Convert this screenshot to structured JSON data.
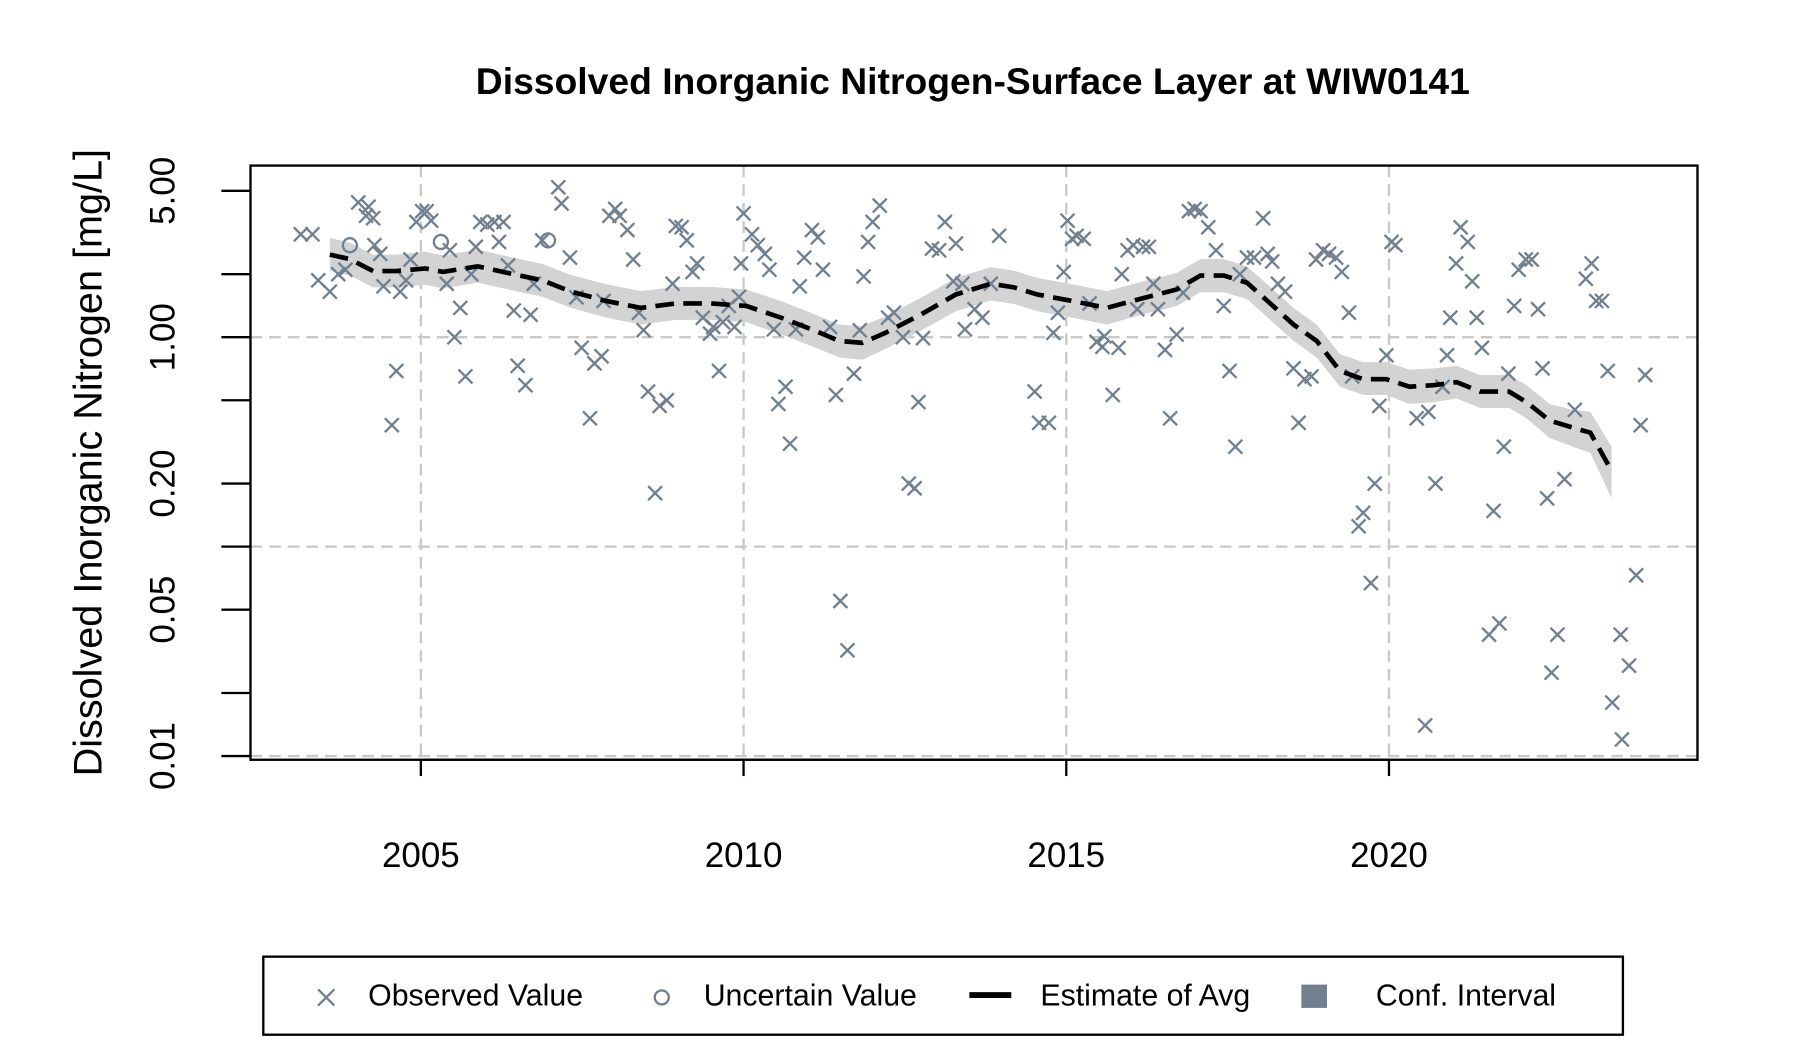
{
  "chart_data": {
    "type": "scatter",
    "title": "Dissolved Inorganic Nitrogen-Surface Layer at WIW0141",
    "y_label": "Dissolved Inorganic Nitrogen [mg/L]",
    "y_log": true,
    "xlim": [
      2002.36,
      2024.78
    ],
    "xticks": [
      2005,
      2010,
      2015,
      2020
    ],
    "ylim": [
      0.0096,
      6.6
    ],
    "yticks": [
      0.01,
      0.05,
      {
        "value": 0.2,
        "label": "0.20"
      },
      {
        "value": 1,
        "label": "1.00"
      },
      {
        "value": 5,
        "label": "5.00"
      }
    ],
    "yticks_minor": [
      0.02,
      0.1,
      0.5,
      2
    ],
    "ygrid": [
      0.01,
      0.1,
      1
    ],
    "grid": true,
    "legend": "bottom",
    "series": [
      {
        "name": "Observed Value",
        "color": "#708090",
        "marker": "x",
        "x": [
          2003.14,
          2003.32,
          2003.41,
          2003.59,
          2003.72,
          2003.83,
          2004.03,
          2004.15,
          2004.19,
          2004.26,
          2004.28,
          2004.37,
          2004.42,
          2004.55,
          2004.62,
          2004.68,
          2004.77,
          2004.84,
          2004.93,
          2005.02,
          2005.09,
          2005.16,
          2005.4,
          2005.45,
          2005.52,
          2005.61,
          2005.69,
          2005.78,
          2005.85,
          2005.92,
          2006.03,
          2006.14,
          2006.21,
          2006.28,
          2006.35,
          2006.44,
          2006.5,
          2006.62,
          2006.7,
          2006.75,
          2006.88,
          2007.13,
          2007.18,
          2007.31,
          2007.41,
          2007.49,
          2007.62,
          2007.69,
          2007.8,
          2007.83,
          2007.92,
          2008.01,
          2008.08,
          2008.2,
          2008.29,
          2008.38,
          2008.45,
          2008.52,
          2008.63,
          2008.7,
          2008.81,
          2008.9,
          2008.95,
          2009.04,
          2009.12,
          2009.21,
          2009.28,
          2009.37,
          2009.48,
          2009.53,
          2009.62,
          2009.68,
          2009.77,
          2009.86,
          2009.93,
          2009.96,
          2010.0,
          2010.13,
          2010.22,
          2010.33,
          2010.4,
          2010.47,
          2010.54,
          2010.65,
          2010.72,
          2010.81,
          2010.87,
          2010.94,
          2011.06,
          2011.15,
          2011.23,
          2011.34,
          2011.43,
          2011.5,
          2011.61,
          2011.71,
          2011.8,
          2011.86,
          2011.93,
          2012.0,
          2012.11,
          2012.24,
          2012.33,
          2012.47,
          2012.56,
          2012.65,
          2012.71,
          2012.78,
          2012.92,
          2013.03,
          2013.12,
          2013.25,
          2013.29,
          2013.39,
          2013.43,
          2013.58,
          2013.7,
          2013.83,
          2013.96,
          2014.51,
          2014.58,
          2014.73,
          2014.8,
          2014.87,
          2014.96,
          2015.02,
          2015.09,
          2015.16,
          2015.27,
          2015.36,
          2015.47,
          2015.56,
          2015.59,
          2015.72,
          2015.81,
          2015.86,
          2015.95,
          2016.04,
          2016.1,
          2016.19,
          2016.28,
          2016.35,
          2016.42,
          2016.53,
          2016.61,
          2016.71,
          2016.81,
          2016.9,
          2016.99,
          2017.08,
          2017.2,
          2017.32,
          2017.44,
          2017.53,
          2017.62,
          2017.69,
          2017.8,
          2017.91,
          2018.05,
          2018.12,
          2018.19,
          2018.28,
          2018.39,
          2018.52,
          2018.6,
          2018.69,
          2018.8,
          2018.87,
          2018.98,
          2019.07,
          2019.18,
          2019.27,
          2019.38,
          2019.43,
          2019.53,
          2019.6,
          2019.72,
          2019.78,
          2019.85,
          2019.96,
          2020.04,
          2020.1,
          2020.43,
          2020.56,
          2020.61,
          2020.72,
          2020.83,
          2020.9,
          2020.95,
          2021.04,
          2021.11,
          2021.22,
          2021.29,
          2021.36,
          2021.44,
          2021.55,
          2021.62,
          2021.71,
          2021.78,
          2021.85,
          2021.94,
          2022.01,
          2022.12,
          2022.21,
          2022.31,
          2022.38,
          2022.45,
          2022.52,
          2022.61,
          2022.72,
          2022.88,
          2023.05,
          2023.14,
          2023.21,
          2023.3,
          2023.39,
          2023.46,
          2023.59,
          2023.61,
          2023.72,
          2023.83,
          2023.9,
          2023.97
        ],
        "values": [
          3.1,
          3.1,
          1.87,
          1.65,
          2.0,
          2.1,
          4.4,
          3.8,
          4.2,
          3.7,
          2.75,
          2.5,
          1.75,
          0.38,
          0.69,
          1.65,
          1.87,
          2.35,
          3.55,
          4.0,
          4.0,
          3.6,
          1.8,
          2.6,
          1.0,
          1.38,
          0.65,
          2.0,
          2.7,
          3.55,
          3.45,
          3.55,
          2.85,
          3.55,
          2.2,
          1.34,
          0.73,
          0.59,
          1.28,
          1.8,
          2.9,
          5.2,
          4.35,
          2.4,
          1.55,
          0.89,
          0.41,
          0.75,
          0.81,
          1.49,
          3.8,
          4.1,
          3.8,
          3.25,
          2.35,
          1.31,
          1.08,
          0.55,
          0.18,
          0.47,
          0.5,
          1.8,
          3.4,
          3.35,
          2.9,
          2.05,
          2.25,
          1.24,
          1.04,
          1.12,
          0.69,
          1.18,
          1.41,
          1.12,
          1.56,
          2.25,
          3.9,
          3.1,
          2.75,
          2.5,
          2.1,
          1.09,
          0.48,
          0.58,
          0.31,
          1.09,
          1.75,
          2.4,
          3.25,
          3.0,
          2.1,
          1.12,
          0.53,
          0.055,
          0.032,
          0.67,
          1.08,
          1.95,
          2.85,
          3.55,
          4.25,
          1.24,
          1.31,
          1.0,
          0.2,
          0.19,
          0.49,
          0.99,
          2.65,
          2.6,
          3.55,
          1.85,
          2.8,
          1.8,
          1.09,
          1.36,
          1.24,
          1.8,
          3.05,
          0.55,
          0.39,
          0.39,
          1.05,
          1.31,
          2.05,
          3.6,
          2.95,
          3.05,
          2.95,
          1.45,
          0.95,
          0.9,
          1.01,
          0.53,
          0.89,
          2.0,
          2.6,
          2.75,
          1.36,
          2.7,
          2.7,
          1.8,
          1.36,
          0.87,
          0.41,
          1.03,
          1.63,
          4.0,
          4.1,
          4.0,
          3.35,
          2.6,
          1.41,
          0.69,
          0.3,
          2.0,
          2.4,
          2.4,
          3.7,
          2.5,
          2.3,
          1.8,
          1.65,
          0.71,
          0.39,
          0.63,
          0.65,
          2.35,
          2.6,
          2.5,
          2.4,
          2.05,
          1.31,
          0.65,
          0.125,
          0.145,
          0.067,
          0.2,
          0.47,
          0.82,
          2.85,
          2.75,
          0.41,
          0.014,
          0.44,
          0.2,
          0.58,
          0.82,
          1.24,
          2.25,
          3.35,
          2.85,
          1.85,
          1.24,
          0.89,
          0.038,
          0.148,
          0.043,
          0.3,
          0.67,
          1.41,
          2.1,
          2.35,
          2.35,
          1.36,
          0.71,
          0.17,
          0.025,
          0.038,
          0.21,
          0.45,
          1.9,
          2.25,
          1.49,
          1.49,
          0.69,
          0.018,
          0.038,
          0.012,
          0.027,
          0.073,
          0.38,
          0.66
        ]
      },
      {
        "name": "Uncertain Value",
        "color": "#708090",
        "marker": "o",
        "x": [
          2003.9,
          2005.31,
          2006.97
        ],
        "values": [
          2.75,
          2.85,
          2.9
        ]
      },
      {
        "name": "Estimate of Avg",
        "color": "#000000",
        "marker": "line",
        "line_style": "dashed",
        "x": [
          2003.59,
          2003.9,
          2004.26,
          2004.62,
          2005.07,
          2005.34,
          2005.88,
          2006.43,
          2006.88,
          2007.33,
          2007.87,
          2008.41,
          2008.95,
          2009.49,
          2010.04,
          2010.58,
          2011.12,
          2011.48,
          2011.84,
          2012.2,
          2012.74,
          2013.29,
          2013.83,
          2014.19,
          2014.55,
          2015.09,
          2015.63,
          2016.17,
          2016.71,
          2017.08,
          2017.44,
          2017.8,
          2018.16,
          2018.52,
          2018.88,
          2019.24,
          2019.6,
          2019.96,
          2020.32,
          2020.69,
          2021.05,
          2021.41,
          2021.86,
          2022.13,
          2022.49,
          2022.85,
          2023.12,
          2023.45
        ],
        "values": [
          2.48,
          2.36,
          2.07,
          2.07,
          2.13,
          2.05,
          2.18,
          2.0,
          1.87,
          1.65,
          1.49,
          1.38,
          1.45,
          1.45,
          1.41,
          1.24,
          1.07,
          0.96,
          0.94,
          1.05,
          1.28,
          1.6,
          1.8,
          1.73,
          1.6,
          1.49,
          1.38,
          1.53,
          1.69,
          1.97,
          1.97,
          1.82,
          1.45,
          1.15,
          0.96,
          0.69,
          0.63,
          0.63,
          0.58,
          0.59,
          0.61,
          0.55,
          0.55,
          0.49,
          0.4,
          0.37,
          0.35,
          0.23
        ]
      },
      {
        "name": "Conf. Interval",
        "color": "#d3d3d3",
        "legend_color": "#708090",
        "marker": "band",
        "x": [
          2003.59,
          2003.9,
          2004.26,
          2004.62,
          2005.07,
          2005.34,
          2005.88,
          2006.43,
          2006.88,
          2007.33,
          2007.87,
          2008.41,
          2008.95,
          2009.49,
          2010.04,
          2010.58,
          2011.12,
          2011.48,
          2011.84,
          2012.2,
          2012.74,
          2013.29,
          2013.83,
          2014.19,
          2014.55,
          2015.09,
          2015.63,
          2016.17,
          2016.71,
          2017.08,
          2017.44,
          2017.8,
          2018.16,
          2018.52,
          2018.88,
          2019.24,
          2019.6,
          2019.96,
          2020.32,
          2020.69,
          2021.05,
          2021.41,
          2021.86,
          2022.13,
          2022.49,
          2022.85,
          2023.12,
          2023.45
        ],
        "lower": [
          2.07,
          1.97,
          1.73,
          1.73,
          1.78,
          1.71,
          1.82,
          1.67,
          1.56,
          1.38,
          1.24,
          1.15,
          1.21,
          1.21,
          1.18,
          1.03,
          0.89,
          0.8,
          0.78,
          0.88,
          1.07,
          1.33,
          1.5,
          1.44,
          1.33,
          1.24,
          1.15,
          1.28,
          1.41,
          1.64,
          1.64,
          1.52,
          1.21,
          0.96,
          0.8,
          0.58,
          0.53,
          0.53,
          0.48,
          0.49,
          0.51,
          0.46,
          0.46,
          0.41,
          0.33,
          0.3,
          0.28,
          0.17
        ],
        "upper": [
          2.98,
          2.83,
          2.48,
          2.48,
          2.56,
          2.46,
          2.62,
          2.4,
          2.24,
          1.98,
          1.79,
          1.66,
          1.74,
          1.74,
          1.69,
          1.49,
          1.28,
          1.15,
          1.13,
          1.26,
          1.54,
          1.92,
          2.16,
          2.08,
          1.92,
          1.79,
          1.66,
          1.84,
          2.03,
          2.36,
          2.36,
          2.18,
          1.74,
          1.38,
          1.15,
          0.83,
          0.76,
          0.76,
          0.7,
          0.71,
          0.73,
          0.66,
          0.66,
          0.59,
          0.48,
          0.45,
          0.44,
          0.3
        ]
      }
    ]
  }
}
